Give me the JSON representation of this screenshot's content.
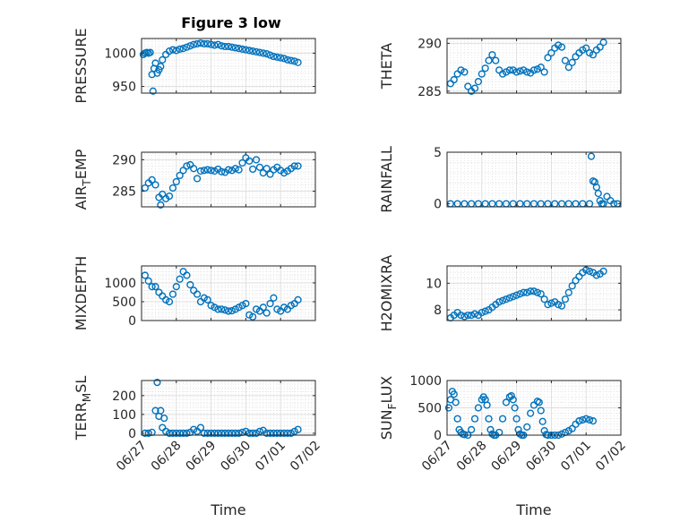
{
  "figure": {
    "title": "Figure 3 low",
    "marker_color": "#0072BD",
    "grid_color": "#dcdcdc"
  },
  "chart_data": [
    {
      "type": "scatter",
      "ylabel": "PRESSURE",
      "title": "Figure 3 low",
      "ylim": [
        940,
        1022
      ],
      "yticks": [
        950,
        1000
      ],
      "x": [
        0.05,
        0.1,
        0.15,
        0.2,
        0.25,
        0.3,
        0.33,
        0.36,
        0.4,
        0.45,
        0.5,
        0.55,
        0.6,
        0.7,
        0.8,
        0.9,
        1.0,
        1.1,
        1.2,
        1.3,
        1.4,
        1.5,
        1.6,
        1.7,
        1.8,
        1.9,
        2.0,
        2.1,
        2.2,
        2.3,
        2.4,
        2.5,
        2.6,
        2.7,
        2.8,
        2.9,
        3.0,
        3.1,
        3.2,
        3.3,
        3.4,
        3.5,
        3.6,
        3.7,
        3.8,
        3.9,
        4.0,
        4.1,
        4.2,
        4.3,
        4.4,
        4.5
      ],
      "values": [
        998,
        1000,
        1001,
        1000,
        1001,
        968,
        943,
        977,
        985,
        970,
        975,
        980,
        990,
        998,
        1003,
        1005,
        1004,
        1006,
        1007,
        1009,
        1011,
        1013,
        1014,
        1015,
        1014,
        1014,
        1013,
        1012,
        1013,
        1011,
        1010,
        1010,
        1009,
        1008,
        1007,
        1006,
        1005,
        1004,
        1003,
        1002,
        1001,
        1000,
        999,
        997,
        995,
        994,
        993,
        992,
        990,
        989,
        988,
        986
      ]
    },
    {
      "type": "scatter",
      "ylabel": "THETA",
      "ylim": [
        284.8,
        290.5
      ],
      "yticks": [
        285,
        290
      ],
      "x": [
        0.1,
        0.2,
        0.3,
        0.4,
        0.5,
        0.6,
        0.7,
        0.8,
        0.9,
        1.0,
        1.1,
        1.2,
        1.3,
        1.4,
        1.5,
        1.6,
        1.7,
        1.8,
        1.9,
        2.0,
        2.1,
        2.2,
        2.3,
        2.4,
        2.5,
        2.6,
        2.7,
        2.8,
        2.9,
        3.0,
        3.1,
        3.2,
        3.3,
        3.4,
        3.5,
        3.6,
        3.7,
        3.8,
        3.9,
        4.0,
        4.1,
        4.2,
        4.3,
        4.4,
        4.5
      ],
      "values": [
        285.8,
        286.2,
        286.8,
        287.2,
        287.0,
        285.5,
        285.0,
        285.3,
        286.0,
        286.8,
        287.4,
        288.2,
        288.8,
        288.2,
        287.2,
        286.8,
        287.0,
        287.2,
        287.2,
        287.0,
        287.1,
        287.2,
        287.0,
        286.9,
        287.2,
        287.3,
        287.5,
        287.0,
        288.5,
        289.0,
        289.5,
        289.8,
        289.6,
        288.2,
        287.5,
        288.0,
        288.6,
        289.0,
        289.3,
        289.5,
        289.0,
        288.8,
        289.3,
        289.6,
        290.1
      ]
    },
    {
      "type": "scatter",
      "ylabel": "AIR_TEMP",
      "ylim": [
        282.5,
        291.2
      ],
      "yticks": [
        285,
        290
      ],
      "x": [
        0.1,
        0.2,
        0.3,
        0.4,
        0.5,
        0.55,
        0.6,
        0.7,
        0.8,
        0.9,
        1.0,
        1.1,
        1.2,
        1.3,
        1.4,
        1.5,
        1.6,
        1.7,
        1.8,
        1.9,
        2.0,
        2.1,
        2.2,
        2.3,
        2.4,
        2.5,
        2.6,
        2.7,
        2.8,
        2.9,
        3.0,
        3.1,
        3.2,
        3.3,
        3.4,
        3.5,
        3.6,
        3.7,
        3.8,
        3.9,
        4.0,
        4.1,
        4.2,
        4.3,
        4.4,
        4.5
      ],
      "values": [
        285.5,
        286.3,
        286.8,
        286.0,
        284.0,
        282.8,
        284.5,
        283.8,
        284.2,
        285.5,
        286.5,
        287.5,
        288.3,
        289.0,
        289.2,
        288.6,
        287.0,
        288.2,
        288.3,
        288.4,
        288.3,
        288.2,
        288.5,
        288.1,
        288.0,
        288.4,
        288.3,
        288.6,
        288.4,
        289.5,
        290.3,
        289.8,
        288.5,
        290.0,
        288.8,
        287.9,
        288.6,
        287.7,
        288.4,
        288.8,
        288.3,
        287.9,
        288.2,
        288.6,
        289.0,
        289.0
      ]
    },
    {
      "type": "scatter",
      "ylabel": "RAINFALL",
      "ylim": [
        -0.3,
        5.0
      ],
      "yticks": [
        0,
        5
      ],
      "x": [
        0.1,
        0.3,
        0.5,
        0.7,
        0.9,
        1.1,
        1.3,
        1.5,
        1.7,
        1.9,
        2.1,
        2.3,
        2.5,
        2.7,
        2.9,
        3.1,
        3.3,
        3.5,
        3.7,
        3.9,
        4.1,
        4.15,
        4.2,
        4.25,
        4.3,
        4.35,
        4.4,
        4.45,
        4.5,
        4.6,
        4.7,
        4.8,
        4.9
      ],
      "values": [
        0,
        0,
        0,
        0,
        0,
        0,
        0,
        0,
        0,
        0,
        0,
        0,
        0,
        0,
        0,
        0,
        0,
        0,
        0,
        0,
        0,
        4.6,
        2.2,
        2.1,
        1.6,
        1.0,
        0.3,
        0,
        0,
        0.7,
        0.3,
        0,
        0
      ]
    },
    {
      "type": "scatter",
      "ylabel": "MIXDEPTH",
      "ylim": [
        0,
        1450
      ],
      "yticks": [
        0,
        500,
        1000
      ],
      "x": [
        0.1,
        0.2,
        0.3,
        0.4,
        0.5,
        0.6,
        0.7,
        0.8,
        0.9,
        1.0,
        1.1,
        1.2,
        1.3,
        1.4,
        1.5,
        1.6,
        1.7,
        1.8,
        1.9,
        2.0,
        2.1,
        2.2,
        2.3,
        2.4,
        2.5,
        2.6,
        2.7,
        2.8,
        2.9,
        3.0,
        3.1,
        3.2,
        3.3,
        3.4,
        3.5,
        3.6,
        3.7,
        3.8,
        3.9,
        4.0,
        4.1,
        4.2,
        4.3,
        4.4,
        4.5
      ],
      "values": [
        1200,
        1050,
        900,
        900,
        750,
        650,
        550,
        500,
        700,
        900,
        1100,
        1300,
        1200,
        950,
        800,
        700,
        500,
        600,
        550,
        400,
        350,
        300,
        300,
        280,
        250,
        260,
        300,
        350,
        400,
        450,
        150,
        100,
        300,
        250,
        350,
        200,
        450,
        600,
        300,
        250,
        350,
        300,
        400,
        450,
        550
      ]
    },
    {
      "type": "scatter",
      "ylabel": "H2OMIXRA",
      "ylim": [
        7.2,
        11.3
      ],
      "yticks": [
        8,
        10
      ],
      "x": [
        0.1,
        0.2,
        0.3,
        0.4,
        0.5,
        0.6,
        0.7,
        0.8,
        0.9,
        1.0,
        1.1,
        1.2,
        1.3,
        1.4,
        1.5,
        1.6,
        1.7,
        1.8,
        1.9,
        2.0,
        2.1,
        2.2,
        2.3,
        2.4,
        2.5,
        2.6,
        2.7,
        2.8,
        2.9,
        3.0,
        3.1,
        3.2,
        3.3,
        3.4,
        3.5,
        3.6,
        3.7,
        3.8,
        3.9,
        4.0,
        4.1,
        4.2,
        4.3,
        4.4,
        4.5
      ],
      "values": [
        7.4,
        7.6,
        7.8,
        7.6,
        7.5,
        7.6,
        7.6,
        7.7,
        7.6,
        7.8,
        7.9,
        8.0,
        8.2,
        8.4,
        8.6,
        8.7,
        8.8,
        8.9,
        9.0,
        9.1,
        9.2,
        9.3,
        9.3,
        9.4,
        9.4,
        9.3,
        9.2,
        8.8,
        8.4,
        8.5,
        8.6,
        8.4,
        8.3,
        8.8,
        9.3,
        9.8,
        10.2,
        10.5,
        10.8,
        11.0,
        10.9,
        10.8,
        10.6,
        10.7,
        10.9
      ]
    },
    {
      "type": "scatter",
      "ylabel": "TERR_MSL",
      "ylim": [
        -10,
        280
      ],
      "yticks": [
        0,
        100,
        200
      ],
      "x": [
        0.1,
        0.2,
        0.3,
        0.4,
        0.45,
        0.5,
        0.55,
        0.6,
        0.65,
        0.7,
        0.8,
        0.9,
        1.0,
        1.1,
        1.2,
        1.3,
        1.4,
        1.5,
        1.6,
        1.7,
        1.8,
        1.9,
        2.0,
        2.1,
        2.2,
        2.3,
        2.4,
        2.5,
        2.6,
        2.7,
        2.8,
        2.9,
        3.0,
        3.1,
        3.2,
        3.3,
        3.4,
        3.5,
        3.6,
        3.7,
        3.8,
        3.9,
        4.0,
        4.1,
        4.2,
        4.3,
        4.4,
        4.5
      ],
      "values": [
        0,
        0,
        5,
        120,
        270,
        90,
        120,
        30,
        80,
        10,
        0,
        0,
        0,
        0,
        0,
        0,
        5,
        20,
        10,
        30,
        0,
        0,
        0,
        0,
        0,
        0,
        0,
        0,
        0,
        0,
        0,
        5,
        10,
        0,
        0,
        0,
        10,
        15,
        0,
        0,
        0,
        0,
        0,
        0,
        0,
        0,
        10,
        20
      ]
    },
    {
      "type": "scatter",
      "ylabel": "SUN_FLUX",
      "ylim": [
        0,
        1000
      ],
      "yticks": [
        0,
        500,
        1000
      ],
      "xlabel": "Time",
      "xticks": [
        "06/27",
        "06/28",
        "06/29",
        "06/30",
        "07/01",
        "07/02"
      ],
      "x": [
        0.05,
        0.1,
        0.15,
        0.2,
        0.25,
        0.3,
        0.35,
        0.4,
        0.45,
        0.5,
        0.6,
        0.7,
        0.8,
        0.9,
        1.0,
        1.05,
        1.1,
        1.15,
        1.2,
        1.25,
        1.3,
        1.35,
        1.4,
        1.5,
        1.6,
        1.7,
        1.8,
        1.85,
        1.9,
        1.95,
        2.0,
        2.05,
        2.1,
        2.15,
        2.2,
        2.3,
        2.4,
        2.5,
        2.6,
        2.65,
        2.7,
        2.75,
        2.8,
        2.85,
        2.9,
        3.0,
        3.1,
        3.2,
        3.3,
        3.4,
        3.5,
        3.6,
        3.7,
        3.8,
        3.9,
        4.0,
        4.1,
        4.2
      ],
      "values": [
        500,
        650,
        800,
        750,
        600,
        300,
        100,
        50,
        20,
        10,
        0,
        100,
        300,
        500,
        650,
        700,
        650,
        550,
        300,
        100,
        20,
        0,
        0,
        50,
        300,
        600,
        700,
        720,
        650,
        500,
        300,
        100,
        20,
        0,
        0,
        150,
        400,
        550,
        620,
        600,
        450,
        250,
        80,
        10,
        0,
        0,
        0,
        0,
        20,
        50,
        80,
        120,
        200,
        260,
        280,
        300,
        280,
        260
      ]
    }
  ]
}
